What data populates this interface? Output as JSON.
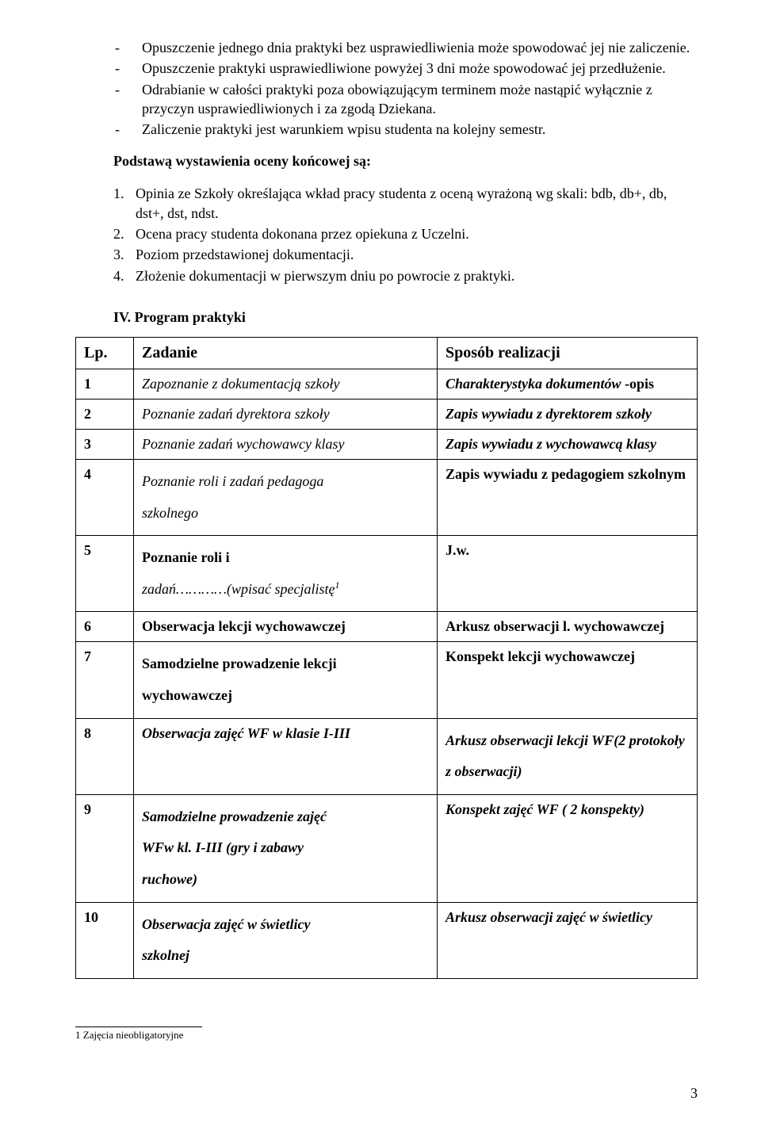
{
  "dash_items": [
    "Opuszczenie jednego dnia praktyki bez usprawiedliwienia może spowodować jej nie zaliczenie.",
    "Opuszczenie praktyki usprawiedliwione powyżej 3 dni może spowodować jej przedłużenie.",
    "Odrabianie w całości praktyki poza obowiązującym terminem może nastąpić wyłącznie z przyczyn usprawiedliwionych i za zgodą Dziekana.",
    "Zaliczenie praktyki jest warunkiem wpisu studenta na kolejny semestr."
  ],
  "basis_heading": "Podstawą wystawienia oceny końcowej są:",
  "num_items": [
    "Opinia ze Szkoły określająca wkład pracy studenta z oceną wyrażoną wg skali: bdb, db+, db, dst+, dst, ndst.",
    "Ocena pracy studenta dokonana przez opiekuna z Uczelni.",
    "Poziom przedstawionej dokumentacji.",
    "Złożenie dokumentacji w pierwszym dniu po powrocie z praktyki."
  ],
  "program_heading": "IV. Program praktyki",
  "table": {
    "head_lp": "Lp.",
    "head_task": "Zadanie",
    "head_method": "Sposób realizacji",
    "rows": [
      {
        "n": "1",
        "task_html": "<span class='italic'>Zapoznanie z dokumentacją szkoły</span>",
        "method_html": "<span class='italic bold'>Charakterystyka dokumentów</span><span class='bold'> -opis</span>"
      },
      {
        "n": "2",
        "task_html": "<span class='italic'>Poznanie zadań dyrektora szkoły</span>",
        "method_html": "<span class='italic bold'>Zapis wywiadu z dyrektorem szkoły</span>"
      },
      {
        "n": "3",
        "task_html": "<span class='italic'>Poznanie zadań wychowawcy klasy</span>",
        "method_html": "<span class='italic bold'>Zapis wywiadu z wychowawcą klasy</span>"
      },
      {
        "n": "4",
        "task_html": "<div class='cell-line'><span class='italic'>Poznanie roli i zadań pedagoga</span><br><span class='italic'>szkolnego</span></div>",
        "method_html": "<span class='bold'>Zapis wywiadu z pedagogiem szkolnym</span>"
      },
      {
        "n": "5",
        "task_html": "<div class='cell-line'><span class='bold'>Poznanie roli i</span><br><span class='italic'>zadań…………(wpisać specjalistę</span><span class='sup italic'>1</span></div>",
        "method_html": "<span class='bold'>J.w.</span>"
      },
      {
        "n": "6",
        "task_html": "<span class='bold'>Obserwacja lekcji wychowawczej</span>",
        "method_html": "<span class='bold'>Arkusz obserwacji l. wychowawczej</span>"
      },
      {
        "n": "7",
        "task_html": "<div class='cell-line'><span class='bold'>Samodzielne prowadzenie lekcji</span><br><span class='bold'>wychowawczej</span></div>",
        "method_html": "<span class='bold'>Konspekt lekcji wychowawczej</span>"
      },
      {
        "n": "8",
        "task_html": "<span class='italic bold'>Obserwacja zajęć WF  w klasie I-III</span>",
        "method_html": "<div class='cell-line'><span class='italic bold'>Arkusz obserwacji lekcji WF(2 protokoły</span><br><span class='italic bold'>z obserwacji)</span></div>"
      },
      {
        "n": "9",
        "task_html": "<div class='cell-line'><span class='italic bold'>Samodzielne prowadzenie zajęć</span><br><span class='italic bold'>WFw kl. I-III (gry i zabawy</span><br><span class='italic bold'>ruchowe)</span></div>",
        "method_html": "<span class='italic bold'>Konspekt zajęć WF ( 2 konspekty)</span>"
      },
      {
        "n": "10",
        "task_html": "<div class='cell-line'><span class='italic bold'>Obserwacja zajęć w świetlicy</span><br><span class='italic bold'>szkolnej</span></div>",
        "method_html": "<span class='italic bold'>Arkusz obserwacji zajęć w świetlicy</span>"
      }
    ]
  },
  "footnote_marker": "1",
  "footnote_text": " Zajęcia nieobligatoryjne",
  "page_number": "3"
}
